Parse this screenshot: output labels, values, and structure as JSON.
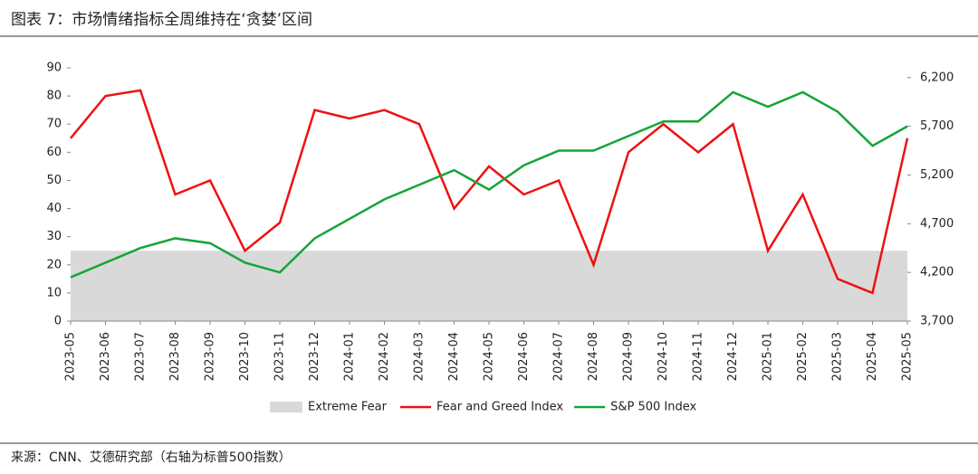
{
  "chart_data": {
    "type": "line",
    "title": "图表 7：市场情绪指标全周维持在‘贪婪’区间",
    "source": "来源：CNN、艾德研究部（右轴为标普500指数）",
    "x": [
      "2023-05",
      "2023-06",
      "2023-07",
      "2023-08",
      "2023-09",
      "2023-10",
      "2023-11",
      "2023-12",
      "2024-01",
      "2024-02",
      "2024-03",
      "2024-04",
      "2024-05",
      "2024-06",
      "2024-07",
      "2024-08",
      "2024-09",
      "2024-10",
      "2024-11",
      "2024-12",
      "2025-01",
      "2025-02",
      "2025-03",
      "2025-04",
      "2025-05"
    ],
    "bands": [
      {
        "name": "Extreme Fear",
        "color": "#d9d9d9",
        "from": 0,
        "to": 25
      }
    ],
    "series": [
      {
        "name": "Fear and Greed Index",
        "color": "#ee1111",
        "values": [
          65,
          80,
          82,
          45,
          50,
          25,
          35,
          75,
          72,
          75,
          70,
          40,
          55,
          45,
          50,
          20,
          60,
          70,
          60,
          70,
          25,
          45,
          15,
          10,
          65
        ]
      },
      {
        "name": "S&P 500 Index",
        "color": "#13a538",
        "axis": "y2",
        "values": [
          4150,
          4300,
          4450,
          4550,
          4500,
          4300,
          4200,
          4550,
          4750,
          4950,
          5100,
          5250,
          5050,
          5300,
          5450,
          5450,
          5600,
          5750,
          5750,
          6050,
          5900,
          6050,
          5850,
          5500,
          5700
        ]
      }
    ],
    "ylim": [
      0,
      90
    ],
    "yticks": [
      0,
      10,
      20,
      30,
      40,
      50,
      60,
      70,
      80,
      90
    ],
    "y2lim": [
      3700,
      6300
    ],
    "y2ticks": [
      {
        "value": 3700,
        "label": "3,700"
      },
      {
        "value": 4200,
        "label": "4,200"
      },
      {
        "value": 4700,
        "label": "4,700"
      },
      {
        "value": 5200,
        "label": "5,200"
      },
      {
        "value": 5700,
        "label": "5,700"
      },
      {
        "value": 6200,
        "label": "6,200"
      }
    ]
  }
}
